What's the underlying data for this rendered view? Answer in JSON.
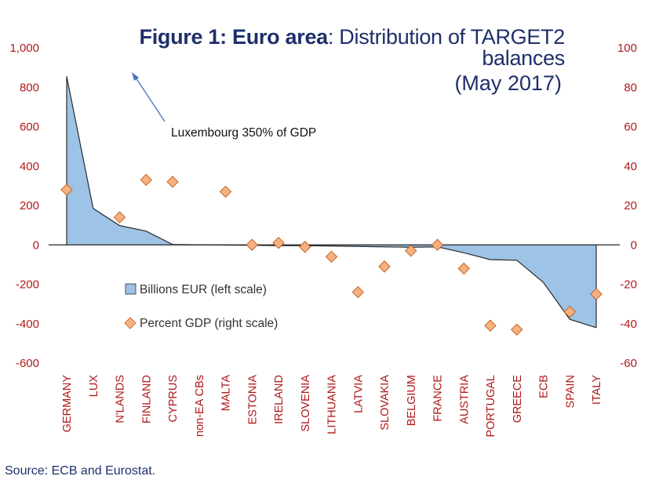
{
  "title": {
    "bold": "Figure 1: Euro area",
    "rest": ": Distribution of TARGET2 balances",
    "line2": "(May 2017)"
  },
  "source": "Source: ECB and Eurostat.",
  "annotation": "Luxembourg 350% of GDP",
  "colors": {
    "area_fill": "#9dc3e6",
    "area_stroke": "#2b2b2b",
    "marker_fill": "#f4b183",
    "marker_stroke": "#c55a11",
    "tick_text": "#b0191b",
    "title": "#1f2f6b",
    "arrow": "#4472c4"
  },
  "chart_data": {
    "type": "area",
    "categories": [
      "GERMANY",
      "LUX",
      "N'LANDS",
      "FINLAND",
      "CYPRUS",
      "non-EA CBs",
      "MALTA",
      "ESTONIA",
      "IRELAND",
      "SLOVENIA",
      "LITHUANIA",
      "LATVIA",
      "SLOVAKIA",
      "BELGIUM",
      "FRANCE",
      "AUSTRIA",
      "PORTUGAL",
      "GREECE",
      "ECB",
      "SPAIN",
      "ITALY"
    ],
    "series": [
      {
        "name": "Billions EUR (left scale)",
        "type": "area",
        "axis": "left",
        "values": [
          855,
          185,
          98,
          70,
          2,
          0,
          -1,
          -2,
          -4,
          -4,
          -6,
          -8,
          -10,
          -12,
          -10,
          -40,
          -75,
          -78,
          -190,
          -378,
          -420
        ]
      },
      {
        "name": "Percent GDP (right scale)",
        "type": "scatter",
        "axis": "right",
        "values": [
          28,
          null,
          14,
          33,
          32,
          null,
          27,
          0,
          1,
          -1,
          -6,
          -24,
          -11,
          -3,
          0,
          -12,
          -41,
          -43,
          null,
          -34,
          -25
        ]
      }
    ],
    "ylim_left": [
      -600,
      1000
    ],
    "yticks_left": [
      "1,000",
      "800",
      "600",
      "400",
      "200",
      "0",
      "-200",
      "-400",
      "-600"
    ],
    "ylim_right": [
      -60,
      100
    ],
    "yticks_right": [
      "100",
      "80",
      "60",
      "40",
      "20",
      "0",
      "-20",
      "-40",
      "-60"
    ],
    "legend_position": "inside-lower-left",
    "grid": false
  }
}
